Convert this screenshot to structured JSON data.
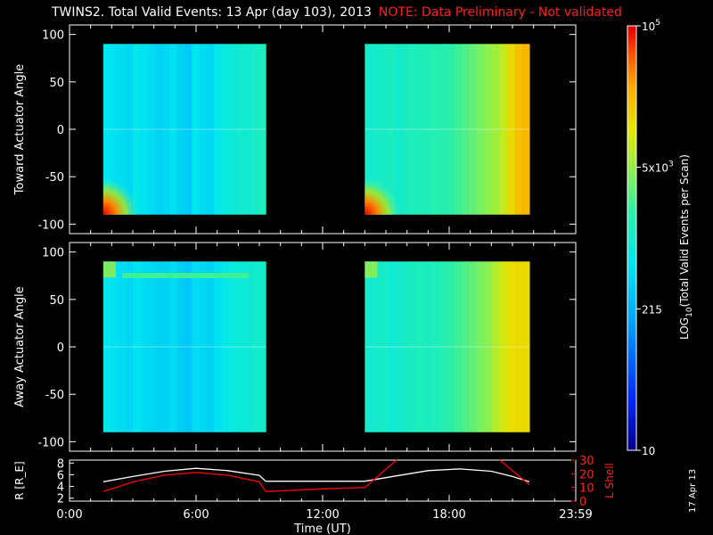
{
  "header": {
    "title": "TWINS2. Total Valid Events: 13 Apr (day 103), 2013",
    "note": "NOTE: Data Preliminary - Not validated"
  },
  "footer": {
    "date_stamp": "17 Apr 13"
  },
  "colors": {
    "background": "#000000",
    "axes": "#ffffff",
    "note": "#ff2020",
    "l_shell": "#ff0000",
    "r_line": "#ffffff"
  },
  "chart_data": [
    {
      "type": "heatmap",
      "ylabel": "Toward Actuator Angle",
      "xlim": [
        0,
        24
      ],
      "ylim": [
        -110,
        110
      ],
      "yticks": [
        -100,
        -50,
        0,
        50,
        100
      ],
      "data_blocks": [
        {
          "x": [
            1.6,
            9.3
          ],
          "y": [
            -90,
            90
          ],
          "levels": [
            0.44,
            0.43,
            0.42,
            0.41,
            0.45,
            0.43,
            0.42,
            0.4,
            0.41,
            0.43,
            0.4,
            0.39,
            0.44,
            0.42,
            0.41,
            0.45,
            0.47,
            0.48,
            0.5,
            0.49,
            0.51,
            0.52
          ]
        },
        {
          "x": [
            14.0,
            21.8
          ],
          "y": [
            -90,
            90
          ],
          "levels": [
            0.5,
            0.51,
            0.51,
            0.52,
            0.5,
            0.52,
            0.53,
            0.53,
            0.54,
            0.55,
            0.55,
            0.56,
            0.58,
            0.6,
            0.62,
            0.64,
            0.66,
            0.68,
            0.72,
            0.78,
            0.82,
            0.84
          ]
        }
      ],
      "hotspots": [
        "lower-left corner of each block, near -90 deg, up to red (~1e5)"
      ]
    },
    {
      "type": "heatmap",
      "ylabel": "Away Actuator Angle",
      "xlim": [
        0,
        24
      ],
      "ylim": [
        -110,
        110
      ],
      "yticks": [
        -100,
        -50,
        0,
        50,
        100
      ],
      "data_blocks": [
        {
          "x": [
            1.6,
            9.3
          ],
          "y": [
            -90,
            90
          ],
          "levels": [
            0.45,
            0.43,
            0.42,
            0.41,
            0.44,
            0.42,
            0.41,
            0.4,
            0.4,
            0.42,
            0.39,
            0.38,
            0.42,
            0.41,
            0.4,
            0.43,
            0.45,
            0.47,
            0.48,
            0.48,
            0.5,
            0.5
          ]
        },
        {
          "x": [
            14.0,
            21.8
          ],
          "y": [
            -90,
            90
          ],
          "levels": [
            0.5,
            0.5,
            0.51,
            0.49,
            0.5,
            0.51,
            0.52,
            0.53,
            0.52,
            0.53,
            0.55,
            0.56,
            0.58,
            0.6,
            0.62,
            0.64,
            0.66,
            0.7,
            0.74,
            0.77,
            0.78,
            0.78
          ]
        }
      ],
      "features": [
        "bright band near +75 deg from 2.5 to 8.5 UT in first block"
      ]
    },
    {
      "type": "line",
      "xlabel": "Time (UT)",
      "xticks": [
        "0:00",
        "6:00",
        "12:00",
        "18:00",
        "23:59"
      ],
      "xlim": [
        0,
        24
      ],
      "left_axis": {
        "label": "R [R_E]",
        "ylim": [
          1.5,
          8.5
        ],
        "yticks": [
          2,
          4,
          6,
          8
        ]
      },
      "right_axis": {
        "label": "L Shell",
        "ylim": [
          0,
          30
        ],
        "yticks": [
          0,
          10,
          20,
          30
        ]
      },
      "series": [
        {
          "name": "R",
          "axis": "left",
          "color": "#ffffff",
          "x": [
            1.6,
            3,
            4.5,
            6,
            7.5,
            9.0,
            9.3,
            12,
            14.0,
            15.5,
            17,
            18.5,
            20,
            21.0,
            21.8
          ],
          "y": [
            4.8,
            5.7,
            6.6,
            7.1,
            6.7,
            5.9,
            4.9,
            4.9,
            4.9,
            5.8,
            6.7,
            7.0,
            6.6,
            5.7,
            4.8
          ]
        },
        {
          "name": "L Shell",
          "axis": "right",
          "color": "#ff0000",
          "x": [
            1.6,
            3,
            4.5,
            6,
            7.5,
            9.0,
            9.3,
            12,
            14.0,
            15.5,
            null,
            20.4,
            21.8
          ],
          "y": [
            7,
            14,
            19,
            21,
            19,
            14,
            7,
            9,
            10,
            30,
            null,
            30,
            12
          ]
        }
      ]
    },
    {
      "type": "colorbar",
      "label": "LOG10(Total Valid Events per Scan)",
      "label_main": "LOG",
      "label_sub": "10",
      "label_rest": "(Total Valid Events per Scan)",
      "ticks": [
        "10",
        "215",
        "5x10^3",
        "10^5"
      ],
      "tick_parts": [
        {
          "base": "10",
          "exp": ""
        },
        {
          "base": "215",
          "exp": ""
        },
        {
          "base": "5x10",
          "exp": "3"
        },
        {
          "base": "10",
          "exp": "5"
        }
      ],
      "tick_levels": [
        0,
        0.333,
        0.667,
        1.0
      ]
    }
  ]
}
